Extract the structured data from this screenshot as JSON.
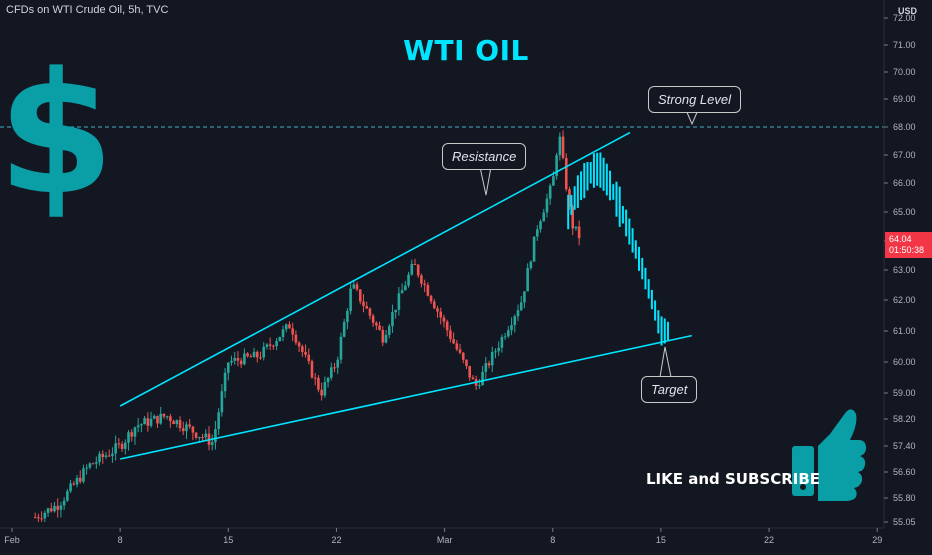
{
  "header": {
    "symbol_line": "CFDs on WTI Crude Oil, 5h, TVC"
  },
  "title": "WTI OIL",
  "cta": "LIKE and SUBSCRIBE",
  "currency": "USD",
  "callouts": {
    "resistance": "Resistance",
    "strong_level": "Strong Level",
    "target": "Target"
  },
  "last_price": {
    "value": "64.04",
    "countdown": "01:50:38"
  },
  "colors": {
    "up": "#26a69a",
    "down": "#ef5350",
    "trendline": "#00e5ff",
    "dollar": "#0a9ea6",
    "thumb": "#0a9ea6",
    "level": "#3fb6c7"
  },
  "icons": [
    "dollar-sign-icon",
    "thumbs-up-icon"
  ],
  "chart_data": {
    "type": "candlestick",
    "title": "WTI OIL",
    "x_ticks": [
      "Feb",
      "8",
      "15",
      "22",
      "Mar",
      "8",
      "15",
      "22",
      "29"
    ],
    "y_ticks": [
      "55.05",
      "55.80",
      "56.60",
      "57.40",
      "58.20",
      "59.00",
      "60.00",
      "61.00",
      "62.00",
      "63.00",
      "64.00",
      "65.00",
      "66.00",
      "67.00",
      "68.00",
      "69.00",
      "70.00",
      "71.00",
      "72.00"
    ],
    "ylim": [
      55.05,
      72.0
    ],
    "horizontal_level": 68.0,
    "resistance_line": {
      "from": [
        "Feb 8",
        58.6
      ],
      "to": [
        "Mar 13",
        67.8
      ]
    },
    "support_line": {
      "from": [
        "Feb 8",
        57.0
      ],
      "to": [
        "Mar 17",
        60.85
      ]
    },
    "projection": {
      "from": [
        "Mar 9",
        65.0
      ],
      "peak": [
        "Mar 11",
        66.5
      ],
      "to": [
        "Mar 15",
        61.0
      ]
    }
  }
}
